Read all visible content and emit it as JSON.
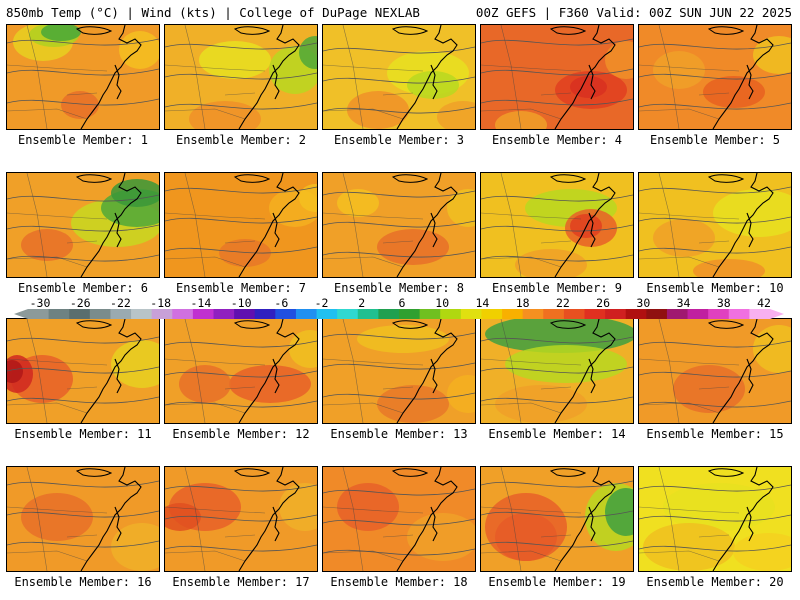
{
  "header": {
    "left": "850mb Temp (°C) | Wind (kts) | College of DuPage NEXLAB",
    "right": "00Z GEFS | F360 Valid: 00Z SUN JUN 22 2025"
  },
  "colorbar": {
    "tick_labels": [
      "-30",
      "-26",
      "-22",
      "-18",
      "-14",
      "-10",
      "-6",
      "-2",
      "2",
      "6",
      "10",
      "14",
      "18",
      "22",
      "26",
      "30",
      "34",
      "38",
      "42"
    ],
    "colors": [
      "#8c9a9a",
      "#6e8282",
      "#5a6e6e",
      "#7a8c8c",
      "#9aaab0",
      "#b8c4c8",
      "#c8a0d8",
      "#d070e0",
      "#c030d0",
      "#9020c0",
      "#6010b0",
      "#3020c0",
      "#2050e0",
      "#2090f0",
      "#20c0f0",
      "#30d8d0",
      "#20c090",
      "#20a050",
      "#30a030",
      "#70c020",
      "#b0d810",
      "#e0e010",
      "#f0d000",
      "#f8b000",
      "#f59020",
      "#f07020",
      "#e85020",
      "#e03020",
      "#d02020",
      "#b01010",
      "#901010",
      "#a01870",
      "#c020a0",
      "#e040c0",
      "#f070e0",
      "#f8b0f0"
    ]
  },
  "members": [
    {
      "label": "Ensemble Member: 1",
      "base": "#f09a28",
      "blobs": [
        {
          "c": "#e8d020",
          "a": [
            12,
            2,
            48,
            30
          ]
        },
        {
          "c": "#b0d020",
          "a": [
            28,
            2,
            38,
            16
          ]
        },
        {
          "c": "#48a838",
          "a": [
            40,
            2,
            28,
            10
          ]
        },
        {
          "c": "#e87028",
          "a": [
            60,
            70,
            26,
            20
          ]
        },
        {
          "c": "#f4c020",
          "a": [
            118,
            10,
            30,
            30
          ]
        }
      ]
    },
    {
      "label": "Ensemble Member: 2",
      "base": "#f0b028",
      "blobs": [
        {
          "c": "#e8e020",
          "a": [
            40,
            20,
            60,
            30
          ]
        },
        {
          "c": "#b8d820",
          "a": [
            110,
            25,
            40,
            40
          ]
        },
        {
          "c": "#50a838",
          "a": [
            140,
            15,
            20,
            25
          ]
        },
        {
          "c": "#f09028",
          "a": [
            30,
            80,
            60,
            28
          ]
        }
      ]
    },
    {
      "label": "Ensemble Member: 3",
      "base": "#f0c028",
      "blobs": [
        {
          "c": "#e8e020",
          "a": [
            70,
            30,
            70,
            36
          ]
        },
        {
          "c": "#b8d820",
          "a": [
            90,
            50,
            40,
            20
          ]
        },
        {
          "c": "#f09028",
          "a": [
            30,
            70,
            50,
            30
          ]
        },
        {
          "c": "#f0a028",
          "a": [
            120,
            80,
            40,
            24
          ]
        }
      ]
    },
    {
      "label": "Ensemble Member: 4",
      "base": "#e86828",
      "blobs": [
        {
          "c": "#e04020",
          "a": [
            80,
            50,
            60,
            30
          ]
        },
        {
          "c": "#d83020",
          "a": [
            95,
            55,
            25,
            14
          ]
        },
        {
          "c": "#f09028",
          "a": [
            130,
            20,
            30,
            30
          ]
        },
        {
          "c": "#f0a028",
          "a": [
            20,
            90,
            40,
            20
          ]
        }
      ]
    },
    {
      "label": "Ensemble Member: 5",
      "base": "#f08a28",
      "blobs": [
        {
          "c": "#f0c020",
          "a": [
            120,
            15,
            40,
            30
          ]
        },
        {
          "c": "#e86020",
          "a": [
            70,
            55,
            50,
            24
          ]
        },
        {
          "c": "#f0a028",
          "a": [
            20,
            30,
            40,
            30
          ]
        }
      ]
    },
    {
      "label": "Ensemble Member: 6",
      "base": "#f0a028",
      "blobs": [
        {
          "c": "#c8d820",
          "a": [
            70,
            30,
            80,
            40
          ]
        },
        {
          "c": "#50a838",
          "a": [
            100,
            20,
            60,
            30
          ]
        },
        {
          "c": "#3a9838",
          "a": [
            110,
            10,
            40,
            20
          ]
        },
        {
          "c": "#e87028",
          "a": [
            20,
            60,
            40,
            24
          ]
        }
      ]
    },
    {
      "label": "Ensemble Member: 7",
      "base": "#f0961e",
      "blobs": [
        {
          "c": "#f4b020",
          "a": [
            110,
            20,
            40,
            30
          ]
        },
        {
          "c": "#f4c020",
          "a": [
            140,
            15,
            20,
            20
          ]
        },
        {
          "c": "#e87828",
          "a": [
            60,
            70,
            40,
            20
          ]
        }
      ]
    },
    {
      "label": "Ensemble Member: 8",
      "base": "#f0a028",
      "blobs": [
        {
          "c": "#e87028",
          "a": [
            60,
            60,
            60,
            28
          ]
        },
        {
          "c": "#f0c020",
          "a": [
            130,
            20,
            30,
            30
          ]
        },
        {
          "c": "#f4c020",
          "a": [
            20,
            20,
            30,
            20
          ]
        }
      ]
    },
    {
      "label": "Ensemble Member: 9",
      "base": "#f0c020",
      "blobs": [
        {
          "c": "#b8d820",
          "a": [
            50,
            20,
            80,
            30
          ]
        },
        {
          "c": "#e86028",
          "a": [
            90,
            40,
            40,
            30
          ]
        },
        {
          "c": "#e04020",
          "a": [
            95,
            45,
            20,
            16
          ]
        },
        {
          "c": "#f0a028",
          "a": [
            40,
            80,
            60,
            24
          ]
        }
      ]
    },
    {
      "label": "Ensemble Member: 10",
      "base": "#f0c020",
      "blobs": [
        {
          "c": "#e8e020",
          "a": [
            80,
            20,
            80,
            40
          ]
        },
        {
          "c": "#f0a028",
          "a": [
            20,
            50,
            50,
            30
          ]
        },
        {
          "c": "#f09028",
          "a": [
            60,
            90,
            60,
            16
          ]
        }
      ]
    },
    {
      "label": "Ensemble Member: 11",
      "base": "#f0a028",
      "blobs": [
        {
          "c": "#e86028",
          "a": [
            10,
            40,
            50,
            40
          ]
        },
        {
          "c": "#d02820",
          "a": [
            0,
            40,
            20,
            30
          ]
        },
        {
          "c": "#b01818",
          "a": [
            0,
            45,
            10,
            15
          ]
        },
        {
          "c": "#e8d020",
          "a": [
            110,
            25,
            50,
            40
          ]
        }
      ]
    },
    {
      "label": "Ensemble Member: 12",
      "base": "#f0a028",
      "blobs": [
        {
          "c": "#e86028",
          "a": [
            70,
            50,
            70,
            30
          ]
        },
        {
          "c": "#e87028",
          "a": [
            20,
            50,
            40,
            30
          ]
        },
        {
          "c": "#f0c020",
          "a": [
            130,
            15,
            30,
            30
          ]
        }
      ]
    },
    {
      "label": "Ensemble Member: 13",
      "base": "#f0a028",
      "blobs": [
        {
          "c": "#f0c020",
          "a": [
            40,
            10,
            80,
            20
          ]
        },
        {
          "c": "#e87828",
          "a": [
            60,
            70,
            60,
            30
          ]
        },
        {
          "c": "#f4b020",
          "a": [
            130,
            60,
            30,
            30
          ]
        }
      ]
    },
    {
      "label": "Ensemble Member: 14",
      "base": "#f0b028",
      "blobs": [
        {
          "c": "#40a040",
          "a": [
            10,
            0,
            140,
            30
          ]
        },
        {
          "c": "#b8d820",
          "a": [
            30,
            30,
            110,
            30
          ]
        },
        {
          "c": "#f0a028",
          "a": [
            20,
            70,
            80,
            30
          ]
        }
      ]
    },
    {
      "label": "Ensemble Member: 15",
      "base": "#f09a28",
      "blobs": [
        {
          "c": "#e87028",
          "a": [
            40,
            50,
            60,
            40
          ]
        },
        {
          "c": "#f0c020",
          "a": [
            120,
            10,
            40,
            40
          ]
        }
      ]
    },
    {
      "label": "Ensemble Member: 16",
      "base": "#f09a28",
      "blobs": [
        {
          "c": "#e87028",
          "a": [
            20,
            30,
            60,
            40
          ]
        },
        {
          "c": "#f0b028",
          "a": [
            110,
            60,
            50,
            40
          ]
        }
      ]
    },
    {
      "label": "Ensemble Member: 17",
      "base": "#f09a28",
      "blobs": [
        {
          "c": "#e86028",
          "a": [
            10,
            20,
            60,
            40
          ]
        },
        {
          "c": "#e05020",
          "a": [
            0,
            40,
            30,
            20
          ]
        },
        {
          "c": "#f0b028",
          "a": [
            120,
            20,
            40,
            40
          ]
        }
      ]
    },
    {
      "label": "Ensemble Member: 18",
      "base": "#f08a28",
      "blobs": [
        {
          "c": "#e86028",
          "a": [
            20,
            20,
            50,
            40
          ]
        },
        {
          "c": "#f0a028",
          "a": [
            90,
            50,
            60,
            40
          ]
        }
      ]
    },
    {
      "label": "Ensemble Member: 19",
      "base": "#f0a028",
      "blobs": [
        {
          "c": "#e04020",
          "a": [
            20,
            50,
            50,
            40
          ]
        },
        {
          "c": "#e86028",
          "a": [
            10,
            30,
            70,
            60
          ]
        },
        {
          "c": "#b8d820",
          "a": [
            110,
            20,
            50,
            60
          ]
        },
        {
          "c": "#40a040",
          "a": [
            130,
            25,
            30,
            40
          ]
        }
      ]
    },
    {
      "label": "Ensemble Member: 20",
      "base": "#f0e020",
      "blobs": [
        {
          "c": "#e8e020",
          "a": [
            30,
            20,
            100,
            40
          ]
        },
        {
          "c": "#f0c020",
          "a": [
            10,
            60,
            80,
            40
          ]
        },
        {
          "c": "#f4d020",
          "a": [
            100,
            70,
            60,
            30
          ]
        }
      ]
    }
  ]
}
